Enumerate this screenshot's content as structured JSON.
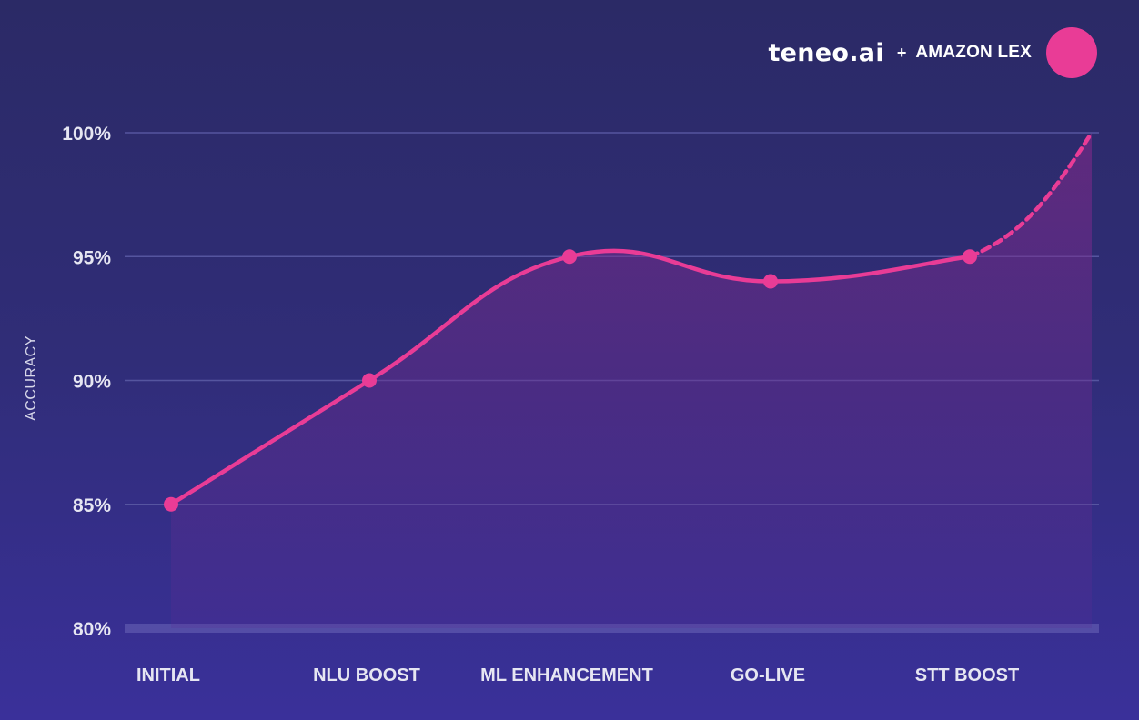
{
  "brand": {
    "logo": "teneo.ai",
    "plus": "+",
    "partner": "AMAZON LEX",
    "accent_color": "#e93c96"
  },
  "chart_data": {
    "type": "line",
    "title": "",
    "xlabel": "",
    "ylabel": "ACCURACY",
    "categories": [
      "INITIAL",
      "NLU BOOST",
      "ML ENHANCEMENT",
      "GO-LIVE",
      "STT BOOST"
    ],
    "series": [
      {
        "values": [
          85,
          90,
          95,
          94,
          95
        ],
        "color": "#e93c96",
        "style": "solid",
        "area_fill": true
      }
    ],
    "projection": {
      "from_value": 95,
      "to_value": 100,
      "style": "dashed"
    },
    "yticks": [
      80,
      85,
      90,
      95,
      100
    ],
    "ytick_labels": [
      "80%",
      "85%",
      "90%",
      "95%",
      "100%"
    ],
    "ylim": [
      80,
      100
    ],
    "grid": true,
    "legend": "none",
    "line_color": "#e93c96",
    "grid_color": "#5a5aa4"
  }
}
